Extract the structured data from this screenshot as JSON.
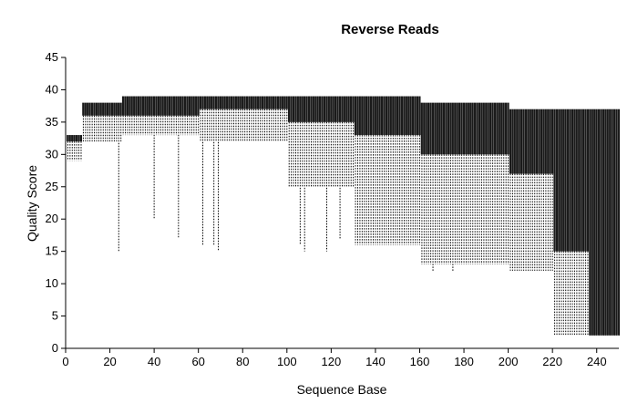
{
  "chart_data": {
    "type": "box",
    "title": "Reverse Reads",
    "xlabel": "Sequence Base",
    "ylabel": "Quality Score",
    "xlim": [
      0,
      250
    ],
    "ylim": [
      0,
      45
    ],
    "x_ticks": [
      0,
      20,
      40,
      60,
      80,
      100,
      120,
      140,
      160,
      180,
      200,
      220,
      240
    ],
    "y_ticks": [
      0,
      5,
      10,
      15,
      20,
      25,
      30,
      35,
      40,
      45
    ],
    "grid": false,
    "legend": "none",
    "colors": {
      "box_fill": "#1a1a1a",
      "whisker": "#000000",
      "axis": "#000000"
    },
    "series": [
      {
        "segments": [
          {
            "from": 1,
            "to": 7,
            "q1": 32,
            "q3": 33,
            "low": 29,
            "high": 33
          },
          {
            "from": 8,
            "to": 25,
            "q1": 36,
            "q3": 38,
            "low": 32,
            "high": 38
          },
          {
            "from": 26,
            "to": 60,
            "q1": 36,
            "q3": 39,
            "low": 33,
            "high": 39
          },
          {
            "from": 61,
            "to": 100,
            "q1": 37,
            "q3": 39,
            "low": 32,
            "high": 39
          },
          {
            "from": 101,
            "to": 130,
            "q1": 35,
            "q3": 39,
            "low": 25,
            "high": 39
          },
          {
            "from": 131,
            "to": 160,
            "q1": 33,
            "q3": 39,
            "low": 16,
            "high": 39
          },
          {
            "from": 161,
            "to": 200,
            "q1": 30,
            "q3": 38,
            "low": 13,
            "high": 38
          },
          {
            "from": 201,
            "to": 220,
            "q1": 27,
            "q3": 37,
            "low": 12,
            "high": 37
          },
          {
            "from": 221,
            "to": 236,
            "q1": 15,
            "q3": 37,
            "low": 2,
            "high": 37
          },
          {
            "from": 237,
            "to": 250,
            "q1": 2,
            "q3": 37,
            "low": 2,
            "high": 37
          }
        ],
        "long_whiskers": [
          {
            "x": 24,
            "low": 15
          },
          {
            "x": 40,
            "low": 20
          },
          {
            "x": 51,
            "low": 17
          },
          {
            "x": 62,
            "low": 16
          },
          {
            "x": 67,
            "low": 16
          },
          {
            "x": 69,
            "low": 15
          },
          {
            "x": 106,
            "low": 16
          },
          {
            "x": 108,
            "low": 15
          },
          {
            "x": 118,
            "low": 15
          },
          {
            "x": 124,
            "low": 17
          },
          {
            "x": 166,
            "low": 12
          },
          {
            "x": 175,
            "low": 12
          },
          {
            "x": 185,
            "low": 13
          }
        ]
      }
    ]
  }
}
